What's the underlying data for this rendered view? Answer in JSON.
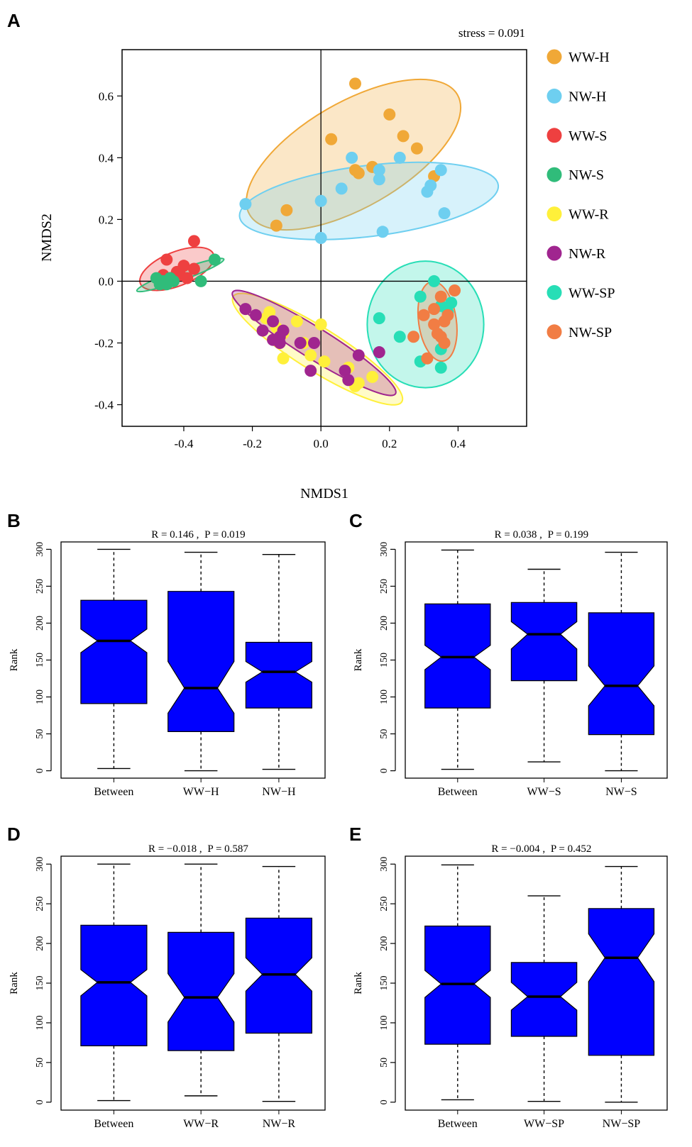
{
  "chart_data": [
    {
      "panel": "A",
      "type": "scatter",
      "title": "stress = 0.091",
      "xlabel": "NMDS1",
      "ylabel": "NMDS2",
      "xlim": [
        -0.58,
        0.6
      ],
      "ylim": [
        -0.47,
        0.75
      ],
      "xticks": [
        -0.4,
        -0.2,
        0.0,
        0.2,
        0.4
      ],
      "xtick_labels": [
        "-0.4",
        "-0.2",
        "0.0",
        "0.2",
        "0.4"
      ],
      "yticks": [
        -0.4,
        -0.2,
        0.0,
        0.2,
        0.4,
        0.6
      ],
      "ytick_labels": [
        "-0.4",
        "-0.2",
        "0.0",
        "0.2",
        "0.4",
        "0.6"
      ],
      "legend_position": "right",
      "series": [
        {
          "name": "WW-H",
          "color": "#F0A837",
          "points": [
            [
              0.1,
              0.64
            ],
            [
              0.2,
              0.54
            ],
            [
              0.24,
              0.47
            ],
            [
              0.28,
              0.43
            ],
            [
              0.03,
              0.46
            ],
            [
              0.15,
              0.37
            ],
            [
              0.1,
              0.36
            ],
            [
              0.11,
              0.35
            ],
            [
              0.33,
              0.34
            ],
            [
              -0.1,
              0.23
            ],
            [
              -0.13,
              0.18
            ]
          ],
          "ellipse": {
            "cx": 0.095,
            "cy": 0.41,
            "rx": 0.35,
            "ry": 0.17,
            "angle": 30
          }
        },
        {
          "name": "NW-H",
          "color": "#6ECFF0",
          "points": [
            [
              0.09,
              0.4
            ],
            [
              0.17,
              0.36
            ],
            [
              0.17,
              0.33
            ],
            [
              0.23,
              0.4
            ],
            [
              0.32,
              0.31
            ],
            [
              0.31,
              0.29
            ],
            [
              0.35,
              0.36
            ],
            [
              0.36,
              0.22
            ],
            [
              -0.22,
              0.25
            ],
            [
              0.0,
              0.26
            ],
            [
              0.06,
              0.3
            ],
            [
              0.18,
              0.16
            ],
            [
              0.0,
              0.14
            ]
          ],
          "ellipse": {
            "cx": 0.14,
            "cy": 0.26,
            "rx": 0.38,
            "ry": 0.115,
            "angle": 7
          }
        },
        {
          "name": "WW-S",
          "color": "#EE4040",
          "points": [
            [
              -0.37,
              0.13
            ],
            [
              -0.45,
              0.07
            ],
            [
              -0.4,
              0.05
            ],
            [
              -0.37,
              0.04
            ],
            [
              -0.42,
              0.03
            ],
            [
              -0.46,
              0.02
            ],
            [
              -0.41,
              0.02
            ],
            [
              -0.44,
              0.01
            ],
            [
              -0.39,
              0.01
            ]
          ],
          "ellipse": {
            "cx": -0.42,
            "cy": 0.04,
            "rx": 0.115,
            "ry": 0.055,
            "angle": 22
          }
        },
        {
          "name": "NW-S",
          "color": "#30BC7A",
          "points": [
            [
              -0.31,
              0.07
            ],
            [
              -0.48,
              0.01
            ],
            [
              -0.46,
              0.0
            ],
            [
              -0.44,
              0.01
            ],
            [
              -0.35,
              0.0
            ],
            [
              -0.47,
              -0.01
            ],
            [
              -0.45,
              -0.01
            ],
            [
              -0.43,
              0.0
            ]
          ],
          "ellipse": {
            "cx": -0.41,
            "cy": 0.02,
            "rx": 0.135,
            "ry": 0.018,
            "angle": 20
          }
        },
        {
          "name": "WW-R",
          "color": "#FFF03A",
          "points": [
            [
              -0.15,
              -0.1
            ],
            [
              -0.16,
              -0.12
            ],
            [
              -0.07,
              -0.13
            ],
            [
              -0.13,
              -0.15
            ],
            [
              -0.11,
              -0.17
            ],
            [
              0.0,
              -0.14
            ],
            [
              -0.05,
              -0.2
            ],
            [
              -0.03,
              -0.24
            ],
            [
              -0.11,
              -0.25
            ],
            [
              0.01,
              -0.26
            ],
            [
              0.08,
              -0.28
            ],
            [
              0.15,
              -0.31
            ],
            [
              0.11,
              -0.33
            ],
            [
              0.1,
              -0.34
            ]
          ],
          "ellipse": {
            "cx": -0.01,
            "cy": -0.22,
            "rx": 0.29,
            "ry": 0.07,
            "angle": -32
          }
        },
        {
          "name": "NW-R",
          "color": "#A0258F",
          "points": [
            [
              -0.22,
              -0.09
            ],
            [
              -0.19,
              -0.11
            ],
            [
              -0.14,
              -0.13
            ],
            [
              -0.11,
              -0.16
            ],
            [
              -0.17,
              -0.16
            ],
            [
              -0.12,
              -0.18
            ],
            [
              -0.14,
              -0.19
            ],
            [
              -0.12,
              -0.2
            ],
            [
              -0.06,
              -0.2
            ],
            [
              -0.02,
              -0.2
            ],
            [
              0.11,
              -0.24
            ],
            [
              0.17,
              -0.23
            ],
            [
              -0.03,
              -0.29
            ],
            [
              0.07,
              -0.29
            ],
            [
              0.08,
              -0.32
            ]
          ],
          "ellipse": {
            "cx": -0.02,
            "cy": -0.2,
            "rx": 0.28,
            "ry": 0.05,
            "angle": -32
          }
        },
        {
          "name": "WW-SP",
          "color": "#27DEB6",
          "points": [
            [
              0.33,
              0.0
            ],
            [
              0.29,
              -0.05
            ],
            [
              0.38,
              -0.07
            ],
            [
              0.35,
              -0.08
            ],
            [
              0.17,
              -0.12
            ],
            [
              0.23,
              -0.18
            ],
            [
              0.37,
              -0.1
            ],
            [
              0.35,
              -0.22
            ],
            [
              0.29,
              -0.26
            ],
            [
              0.35,
              -0.28
            ]
          ],
          "ellipse": {
            "cx": 0.305,
            "cy": -0.14,
            "rx": 0.17,
            "ry": 0.205,
            "angle": 0
          }
        },
        {
          "name": "NW-SP",
          "color": "#F17D44",
          "points": [
            [
              0.39,
              -0.03
            ],
            [
              0.35,
              -0.05
            ],
            [
              0.3,
              -0.11
            ],
            [
              0.33,
              -0.09
            ],
            [
              0.37,
              -0.11
            ],
            [
              0.36,
              -0.13
            ],
            [
              0.33,
              -0.14
            ],
            [
              0.34,
              -0.17
            ],
            [
              0.35,
              -0.18
            ],
            [
              0.36,
              -0.2
            ],
            [
              0.27,
              -0.18
            ],
            [
              0.31,
              -0.25
            ]
          ],
          "ellipse": {
            "cx": 0.34,
            "cy": -0.13,
            "rx": 0.055,
            "ry": 0.13,
            "angle": 8
          }
        }
      ]
    },
    {
      "panel": "B",
      "type": "boxplot",
      "notched": true,
      "title_r": "R = 0.146",
      "title_p": "P = 0.019",
      "title_sep": ",",
      "ylabel": "Rank",
      "ylim": [
        -10,
        310
      ],
      "yticks": [
        0,
        50,
        100,
        150,
        200,
        250,
        300
      ],
      "ytick_labels": [
        "0",
        "50",
        "100",
        "150",
        "200",
        "250",
        "300"
      ],
      "categories": [
        "Between",
        "WW−H",
        "NW−H"
      ],
      "boxes": [
        {
          "whislo": 3,
          "q1": 91,
          "med": 176,
          "q3": 231,
          "whishi": 300,
          "notch_lo": 160,
          "notch_hi": 192
        },
        {
          "whislo": 0,
          "q1": 53,
          "med": 112,
          "q3": 243,
          "whishi": 296,
          "notch_lo": 78,
          "notch_hi": 148
        },
        {
          "whislo": 2,
          "q1": 85,
          "med": 134,
          "q3": 174,
          "whishi": 293,
          "notch_lo": 120,
          "notch_hi": 148
        }
      ]
    },
    {
      "panel": "C",
      "type": "boxplot",
      "notched": true,
      "title_r": "R = 0.038",
      "title_p": "P = 0.199",
      "title_sep": ",",
      "ylabel": "Rank",
      "ylim": [
        -10,
        310
      ],
      "yticks": [
        0,
        50,
        100,
        150,
        200,
        250,
        300
      ],
      "ytick_labels": [
        "0",
        "50",
        "100",
        "150",
        "200",
        "250",
        "300"
      ],
      "categories": [
        "Between",
        "WW−S",
        "NW−S"
      ],
      "boxes": [
        {
          "whislo": 2,
          "q1": 85,
          "med": 154,
          "q3": 226,
          "whishi": 299,
          "notch_lo": 137,
          "notch_hi": 170
        },
        {
          "whislo": 12,
          "q1": 122,
          "med": 185,
          "q3": 228,
          "whishi": 273,
          "notch_lo": 165,
          "notch_hi": 202
        },
        {
          "whislo": 0,
          "q1": 49,
          "med": 115,
          "q3": 214,
          "whishi": 296,
          "notch_lo": 88,
          "notch_hi": 142
        }
      ]
    },
    {
      "panel": "D",
      "type": "boxplot",
      "notched": true,
      "title_r": "R = −0.018",
      "title_p": "P = 0.587",
      "title_sep": ",",
      "ylabel": "Rank",
      "ylim": [
        -10,
        310
      ],
      "yticks": [
        0,
        50,
        100,
        150,
        200,
        250,
        300
      ],
      "ytick_labels": [
        "0",
        "50",
        "100",
        "150",
        "200",
        "250",
        "300"
      ],
      "categories": [
        "Between",
        "WW−R",
        "NW−R"
      ],
      "boxes": [
        {
          "whislo": 2,
          "q1": 71,
          "med": 151,
          "q3": 223,
          "whishi": 300,
          "notch_lo": 134,
          "notch_hi": 167
        },
        {
          "whislo": 8,
          "q1": 65,
          "med": 132,
          "q3": 214,
          "whishi": 300,
          "notch_lo": 101,
          "notch_hi": 162
        },
        {
          "whislo": 1,
          "q1": 87,
          "med": 161,
          "q3": 232,
          "whishi": 297,
          "notch_lo": 140,
          "notch_hi": 182
        }
      ]
    },
    {
      "panel": "E",
      "type": "boxplot",
      "notched": true,
      "title_r": "R = −0.004",
      "title_p": "P = 0.452",
      "title_sep": ",",
      "ylabel": "Rank",
      "ylim": [
        -10,
        310
      ],
      "yticks": [
        0,
        50,
        100,
        150,
        200,
        250,
        300
      ],
      "ytick_labels": [
        "0",
        "50",
        "100",
        "150",
        "200",
        "250",
        "300"
      ],
      "categories": [
        "Between",
        "WW−SP",
        "NW−SP"
      ],
      "boxes": [
        {
          "whislo": 3,
          "q1": 73,
          "med": 149,
          "q3": 222,
          "whishi": 299,
          "notch_lo": 132,
          "notch_hi": 166
        },
        {
          "whislo": 1,
          "q1": 83,
          "med": 133,
          "q3": 176,
          "whishi": 260,
          "notch_lo": 116,
          "notch_hi": 151
        },
        {
          "whislo": 0,
          "q1": 59,
          "med": 182,
          "q3": 244,
          "whishi": 297,
          "notch_lo": 152,
          "notch_hi": 212
        }
      ]
    }
  ]
}
